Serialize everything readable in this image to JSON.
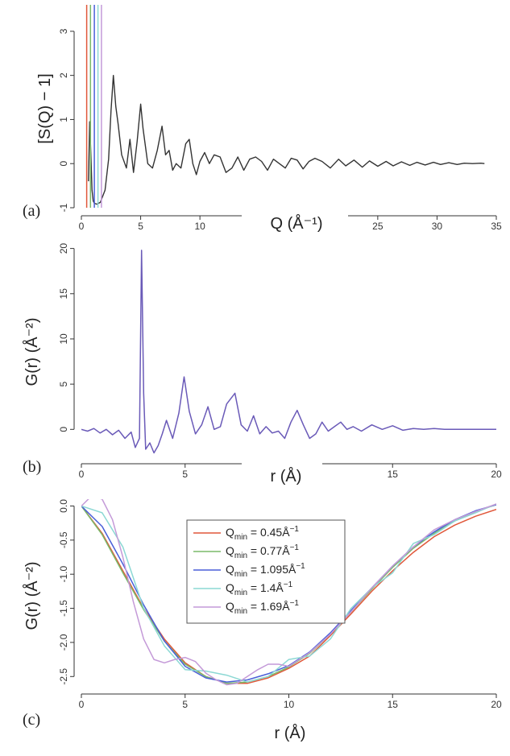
{
  "chart_data": [
    {
      "panel": "(a)",
      "type": "line",
      "xlabel": "Q (Å⁻¹)",
      "ylabel": "[S(Q) − 1]",
      "xlim": [
        0,
        35
      ],
      "ylim": [
        -1,
        3.6
      ],
      "xticks": [
        0,
        5,
        10,
        15,
        20,
        25,
        30,
        35
      ],
      "xtick_labels": [
        "0",
        "5",
        "10",
        "",
        "",
        "25",
        "30",
        "35"
      ],
      "yticks": [
        -1,
        0,
        1,
        2,
        3
      ],
      "grid": false,
      "series": [
        {
          "name": "",
          "color": "#333333",
          "x": [
            0.6,
            0.7,
            0.8,
            0.9,
            1.0,
            1.1,
            1.3,
            1.6,
            2.0,
            2.3,
            2.5,
            2.7,
            2.9,
            3.1,
            3.4,
            3.8,
            4.1,
            4.4,
            4.7,
            5.0,
            5.2,
            5.6,
            6.0,
            6.4,
            6.8,
            7.1,
            7.4,
            7.7,
            8.0,
            8.4,
            8.8,
            9.1,
            9.4,
            9.7,
            10.0,
            10.4,
            10.8,
            11.2,
            11.7,
            12.2,
            12.7,
            13.2,
            13.7,
            14.2,
            14.7,
            15.2,
            15.7,
            16.2,
            16.7,
            17.2,
            17.7,
            18.2,
            18.7,
            19.2,
            19.7,
            20.3,
            21,
            21.7,
            22.3,
            23,
            23.7,
            24.3,
            25,
            25.7,
            26.3,
            27,
            27.7,
            28.3,
            29,
            29.7,
            30.3,
            31,
            31.7,
            32.3,
            33,
            33.7,
            34
          ],
          "y": [
            -0.4,
            0.95,
            0.2,
            -0.6,
            -0.85,
            -0.9,
            -0.92,
            -0.88,
            -0.6,
            0.1,
            1.2,
            2.0,
            1.3,
            0.9,
            0.2,
            -0.1,
            0.55,
            -0.2,
            0.5,
            1.35,
            0.8,
            0.0,
            -0.1,
            0.3,
            0.85,
            0.2,
            0.3,
            -0.15,
            0.0,
            -0.1,
            0.45,
            0.55,
            0.0,
            -0.25,
            0.05,
            0.25,
            0.0,
            0.2,
            0.15,
            -0.2,
            -0.1,
            0.15,
            -0.15,
            0.1,
            0.15,
            0.05,
            -0.15,
            0.1,
            0.0,
            -0.1,
            0.12,
            0.08,
            -0.12,
            0.05,
            0.12,
            0.05,
            -0.1,
            0.1,
            -0.05,
            0.08,
            -0.08,
            0.06,
            -0.06,
            0.05,
            -0.05,
            0.04,
            -0.04,
            0.03,
            -0.03,
            0.03,
            -0.02,
            0.02,
            -0.02,
            0.01,
            0.0,
            0.01,
            0.0
          ]
        },
        {
          "name": "",
          "color": "#e0573a",
          "x": [
            0.45,
            0.45
          ],
          "y": [
            -1,
            3.6
          ]
        },
        {
          "name": "",
          "color": "#7aba6a",
          "x": [
            0.77,
            0.77
          ],
          "y": [
            -1,
            3.6
          ]
        },
        {
          "name": "",
          "color": "#4a5fd8",
          "x": [
            1.095,
            1.095
          ],
          "y": [
            -1,
            3.6
          ]
        },
        {
          "name": "",
          "color": "#8cd8d4",
          "x": [
            1.4,
            1.4
          ],
          "y": [
            -1,
            3.6
          ]
        },
        {
          "name": "",
          "color": "#c49ad8",
          "x": [
            1.69,
            1.69
          ],
          "y": [
            -1,
            3.6
          ]
        }
      ]
    },
    {
      "panel": "(b)",
      "type": "line",
      "xlabel": "r (Å)",
      "ylabel": "G(r) (Å⁻²)",
      "xlim": [
        0,
        20
      ],
      "ylim": [
        -3,
        20.5
      ],
      "xticks": [
        0,
        5,
        10,
        15,
        20
      ],
      "xtick_labels": [
        "0",
        "5",
        "",
        "15",
        "20"
      ],
      "yticks": [
        0,
        5,
        10,
        15,
        20
      ],
      "grid": false,
      "series": [
        {
          "name": "",
          "color": "#6a5ab8",
          "x": [
            0,
            0.3,
            0.6,
            0.9,
            1.2,
            1.5,
            1.8,
            2.1,
            2.4,
            2.6,
            2.8,
            2.9,
            3.0,
            3.1,
            3.3,
            3.5,
            3.7,
            3.9,
            4.1,
            4.4,
            4.7,
            4.95,
            5.2,
            5.5,
            5.8,
            6.1,
            6.4,
            6.7,
            7.0,
            7.4,
            7.7,
            8.0,
            8.3,
            8.6,
            8.9,
            9.2,
            9.5,
            9.8,
            10.1,
            10.4,
            10.7,
            11.0,
            11.3,
            11.6,
            11.9,
            12.2,
            12.5,
            12.8,
            13.1,
            13.5,
            14,
            14.5,
            15,
            15.5,
            16,
            16.5,
            17,
            17.5,
            18,
            19,
            20
          ],
          "y": [
            0,
            -0.2,
            0.1,
            -0.4,
            0.0,
            -0.6,
            -0.1,
            -1.0,
            -0.3,
            -2.0,
            -1.0,
            19.8,
            4,
            -2.2,
            -1.5,
            -2.6,
            -1.8,
            -0.5,
            1.0,
            -1.0,
            1.8,
            5.8,
            2.0,
            -0.5,
            0.5,
            2.5,
            0.0,
            0.3,
            2.8,
            4.0,
            0.5,
            -0.2,
            1.5,
            -0.5,
            0.3,
            -0.4,
            -0.2,
            -1.0,
            0.8,
            2.1,
            0.5,
            -1.0,
            -0.5,
            0.8,
            -0.2,
            0.3,
            0.8,
            0.0,
            0.3,
            -0.2,
            0.5,
            0.0,
            0.4,
            -0.1,
            0.1,
            0.0,
            0.1,
            0.0,
            0.0,
            0.0,
            0.0
          ]
        }
      ]
    },
    {
      "panel": "(c)",
      "type": "line",
      "xlabel": "r (Å)",
      "ylabel": "G(r) (Å⁻²)",
      "xlim": [
        0,
        20
      ],
      "ylim": [
        -2.65,
        0.1
      ],
      "xticks": [
        0,
        5,
        10,
        15,
        20
      ],
      "xtick_labels": [
        "0",
        "5",
        "10",
        "15",
        "20"
      ],
      "yticks": [
        0.0,
        -0.5,
        -1.0,
        -1.5,
        -2.0,
        -2.5
      ],
      "ytick_labels": [
        "0.0",
        "-0.5",
        "-1.0",
        "-1.5",
        "-2.0",
        "-2.5"
      ],
      "grid": false,
      "legend": {
        "position": "top-center"
      },
      "series": [
        {
          "name": "Q",
          "sub": "min",
          "eq": " = 0.45Å",
          "sup": "−1",
          "color": "#e0573a",
          "x": [
            0,
            1,
            2,
            3,
            4,
            5,
            6,
            7,
            8,
            9,
            10,
            11,
            12,
            13,
            14,
            15,
            16,
            17,
            18,
            19,
            20
          ],
          "y": [
            0.0,
            -0.4,
            -0.95,
            -1.5,
            -1.95,
            -2.3,
            -2.5,
            -2.6,
            -2.6,
            -2.52,
            -2.38,
            -2.2,
            -1.9,
            -1.58,
            -1.25,
            -0.95,
            -0.68,
            -0.45,
            -0.28,
            -0.15,
            -0.05
          ]
        },
        {
          "name": "Q",
          "sub": "min",
          "eq": " = 0.77Å",
          "sup": "−1",
          "color": "#7aba6a",
          "x": [
            0,
            1,
            2,
            3,
            4,
            5,
            6,
            7,
            8,
            9,
            10,
            11,
            12,
            13,
            14,
            15,
            16,
            17,
            18,
            19,
            20
          ],
          "y": [
            0.0,
            -0.42,
            -0.98,
            -1.52,
            -1.98,
            -2.32,
            -2.5,
            -2.6,
            -2.58,
            -2.5,
            -2.36,
            -2.16,
            -1.88,
            -1.55,
            -1.22,
            -0.9,
            -0.62,
            -0.4,
            -0.22,
            -0.08,
            0.02
          ]
        },
        {
          "name": "Q",
          "sub": "min",
          "eq": " = 1.095Å",
          "sup": "−1",
          "color": "#4a5fd8",
          "x": [
            0,
            1,
            2,
            3,
            4,
            5,
            6,
            7,
            8,
            9,
            10,
            11,
            12,
            13,
            14,
            15,
            16,
            17,
            18,
            19,
            20
          ],
          "y": [
            0.0,
            -0.3,
            -0.85,
            -1.45,
            -1.98,
            -2.35,
            -2.52,
            -2.58,
            -2.55,
            -2.46,
            -2.34,
            -2.14,
            -1.86,
            -1.53,
            -1.2,
            -0.88,
            -0.6,
            -0.38,
            -0.2,
            -0.07,
            0.02
          ]
        },
        {
          "name": "Q",
          "sub": "min",
          "eq": " = 1.4Å",
          "sup": "−1",
          "color": "#8cd8d4",
          "x": [
            0,
            1,
            2,
            3,
            4,
            5,
            6,
            7,
            8,
            9,
            10,
            11,
            12,
            13,
            14,
            15,
            16,
            17,
            18,
            19,
            20
          ],
          "y": [
            0.0,
            -0.1,
            -0.6,
            -1.5,
            -2.05,
            -2.4,
            -2.42,
            -2.48,
            -2.58,
            -2.5,
            -2.25,
            -2.2,
            -1.95,
            -1.5,
            -1.2,
            -0.98,
            -0.55,
            -0.42,
            -0.22,
            -0.1,
            0.03
          ]
        },
        {
          "name": "Q",
          "sub": "min",
          "eq": " = 1.69Å",
          "sup": "−1",
          "color": "#c49ad8",
          "x": [
            0,
            0.5,
            1,
            1.5,
            2,
            2.5,
            3,
            3.5,
            4,
            4.5,
            5,
            5.5,
            6,
            6.5,
            7,
            7.5,
            8,
            8.5,
            9,
            9.5,
            10,
            11,
            12,
            13,
            14,
            15,
            16,
            17,
            18,
            19,
            20
          ],
          "y": [
            0.0,
            0.15,
            0.1,
            -0.2,
            -0.75,
            -1.4,
            -1.95,
            -2.25,
            -2.3,
            -2.25,
            -2.22,
            -2.28,
            -2.45,
            -2.55,
            -2.62,
            -2.6,
            -2.5,
            -2.4,
            -2.32,
            -2.32,
            -2.35,
            -2.15,
            -1.88,
            -1.55,
            -1.2,
            -0.88,
            -0.6,
            -0.35,
            -0.2,
            -0.08,
            0.03
          ]
        }
      ]
    }
  ]
}
